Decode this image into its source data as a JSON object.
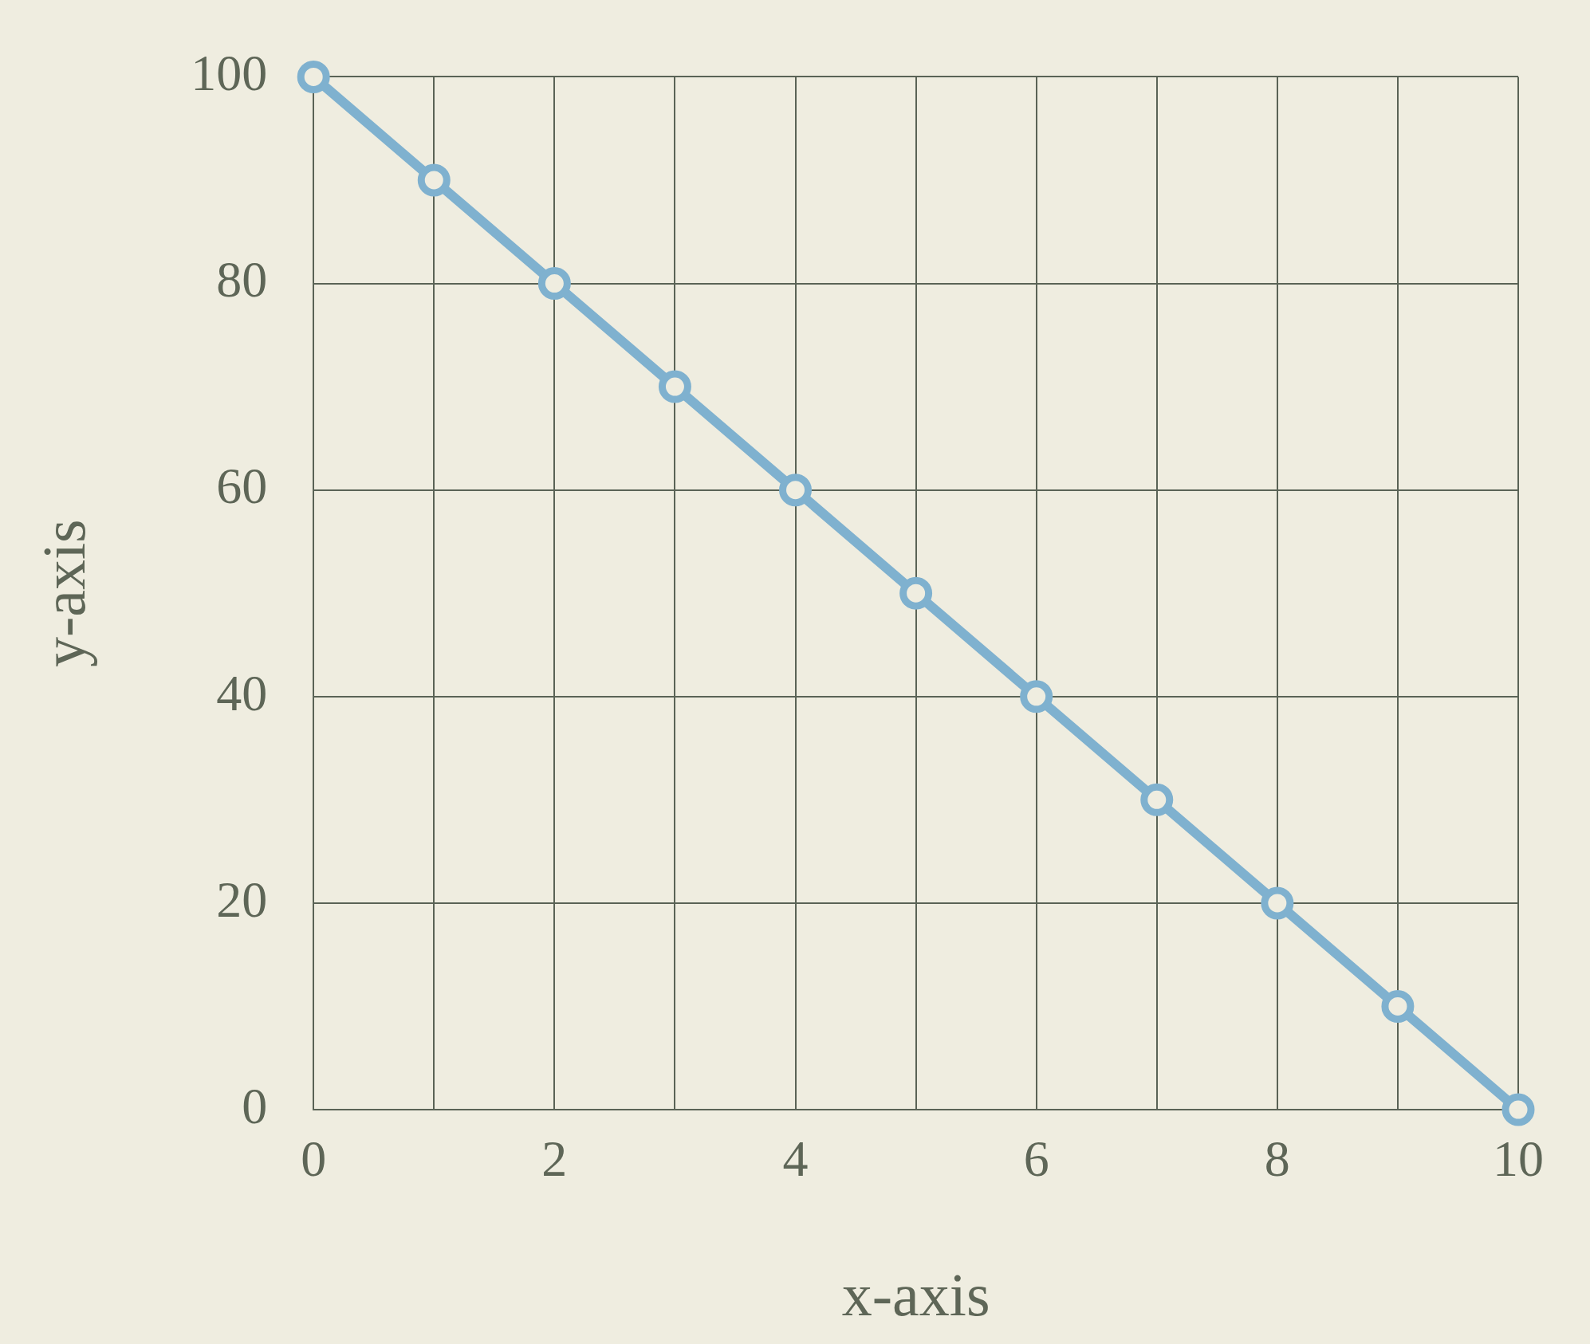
{
  "chart_data": {
    "type": "line",
    "xlabel": "x-axis",
    "ylabel": "y-axis",
    "x": [
      0,
      1,
      2,
      3,
      4,
      5,
      6,
      7,
      8,
      9,
      10
    ],
    "series": [
      {
        "color": "#7fb1cf",
        "values": [
          100,
          90,
          80,
          70,
          60,
          50,
          40,
          30,
          20,
          10,
          0
        ]
      }
    ],
    "xlim": [
      0,
      10
    ],
    "xticks": [
      0,
      {
        "value": 1,
        "label": null
      },
      2,
      {
        "value": 3,
        "label": null
      },
      4,
      {
        "value": 5,
        "label": null
      },
      6,
      {
        "value": 7,
        "label": null
      },
      8,
      {
        "value": 9,
        "label": null
      },
      10
    ],
    "ylim": [
      0,
      100
    ],
    "yticks": [
      0,
      20,
      40,
      60,
      80,
      100
    ],
    "grid": true,
    "legend": false,
    "marker": "circle",
    "line_style": "solid"
  }
}
